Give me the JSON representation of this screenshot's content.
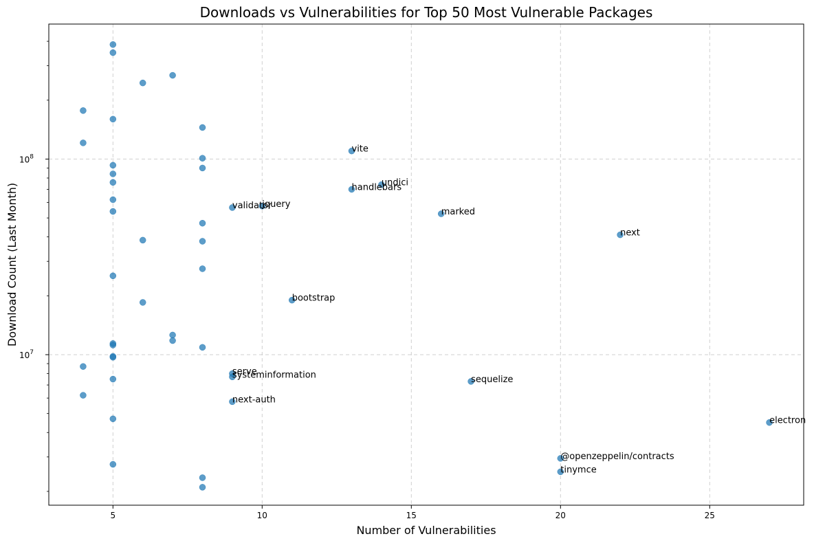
{
  "chart_data": {
    "type": "scatter",
    "title": "Downloads vs Vulnerabilities for Top 50 Most Vulnerable Packages",
    "xlabel": "Number of Vulnerabilities",
    "ylabel": "Download Count (Last Month)",
    "xlim": [
      2.85,
      28.15
    ],
    "ylim": [
      1700000,
      490000000
    ],
    "yscale": "log",
    "grid": true,
    "x_ticks": [
      {
        "value": 5,
        "label": "5"
      },
      {
        "value": 10,
        "label": "10"
      },
      {
        "value": 15,
        "label": "15"
      },
      {
        "value": 20,
        "label": "20"
      },
      {
        "value": 25,
        "label": "25"
      }
    ],
    "y_ticks": [
      {
        "value": 10000000,
        "label": "10",
        "exp": "7"
      },
      {
        "value": 100000000,
        "label": "10",
        "exp": "8"
      }
    ],
    "point_color": "#1f77b4",
    "points": [
      {
        "x": 5,
        "y": 385000000
      },
      {
        "x": 5,
        "y": 350000000
      },
      {
        "x": 6,
        "y": 245000000
      },
      {
        "x": 7,
        "y": 268000000
      },
      {
        "x": 4,
        "y": 177000000
      },
      {
        "x": 5,
        "y": 160000000
      },
      {
        "x": 8,
        "y": 145000000
      },
      {
        "x": 4,
        "y": 121000000
      },
      {
        "x": 8,
        "y": 101000000
      },
      {
        "x": 5,
        "y": 93000000
      },
      {
        "x": 8,
        "y": 90000000
      },
      {
        "x": 5,
        "y": 84000000
      },
      {
        "x": 5,
        "y": 76000000
      },
      {
        "x": 5,
        "y": 62000000
      },
      {
        "x": 5,
        "y": 54000000
      },
      {
        "x": 8,
        "y": 47000000
      },
      {
        "x": 6,
        "y": 38500000
      },
      {
        "x": 8,
        "y": 38000000
      },
      {
        "x": 8,
        "y": 27500000
      },
      {
        "x": 5,
        "y": 25300000
      },
      {
        "x": 6,
        "y": 18500000
      },
      {
        "x": 7,
        "y": 12600000
      },
      {
        "x": 7,
        "y": 11800000
      },
      {
        "x": 5,
        "y": 11400000
      },
      {
        "x": 5,
        "y": 11200000
      },
      {
        "x": 8,
        "y": 10900000
      },
      {
        "x": 5,
        "y": 9800000
      },
      {
        "x": 5,
        "y": 9700000
      },
      {
        "x": 4,
        "y": 8700000
      },
      {
        "x": 5,
        "y": 7500000
      },
      {
        "x": 4,
        "y": 6200000
      },
      {
        "x": 5,
        "y": 4700000
      },
      {
        "x": 5,
        "y": 2750000
      },
      {
        "x": 8,
        "y": 2350000
      },
      {
        "x": 8,
        "y": 2100000
      },
      {
        "x": 13,
        "y": 110000000,
        "label": "vite"
      },
      {
        "x": 14,
        "y": 74000000,
        "label": "undici"
      },
      {
        "x": 13,
        "y": 70000000,
        "label": "handlebars"
      },
      {
        "x": 9,
        "y": 56500000,
        "label": "validator"
      },
      {
        "x": 10,
        "y": 57500000,
        "label": "jquery"
      },
      {
        "x": 16,
        "y": 52500000,
        "label": "marked"
      },
      {
        "x": 22,
        "y": 41000000,
        "label": "next"
      },
      {
        "x": 11,
        "y": 19000000,
        "label": "bootstrap"
      },
      {
        "x": 9,
        "y": 8000000,
        "label": "serve"
      },
      {
        "x": 9,
        "y": 7700000,
        "label": "systeminformation"
      },
      {
        "x": 17,
        "y": 7300000,
        "label": "sequelize"
      },
      {
        "x": 9,
        "y": 5750000,
        "label": "next-auth"
      },
      {
        "x": 27,
        "y": 4500000,
        "label": "electron"
      },
      {
        "x": 20,
        "y": 2950000,
        "label": "@openzeppelin/contracts"
      },
      {
        "x": 20,
        "y": 2520000,
        "label": "tinymce"
      }
    ]
  }
}
